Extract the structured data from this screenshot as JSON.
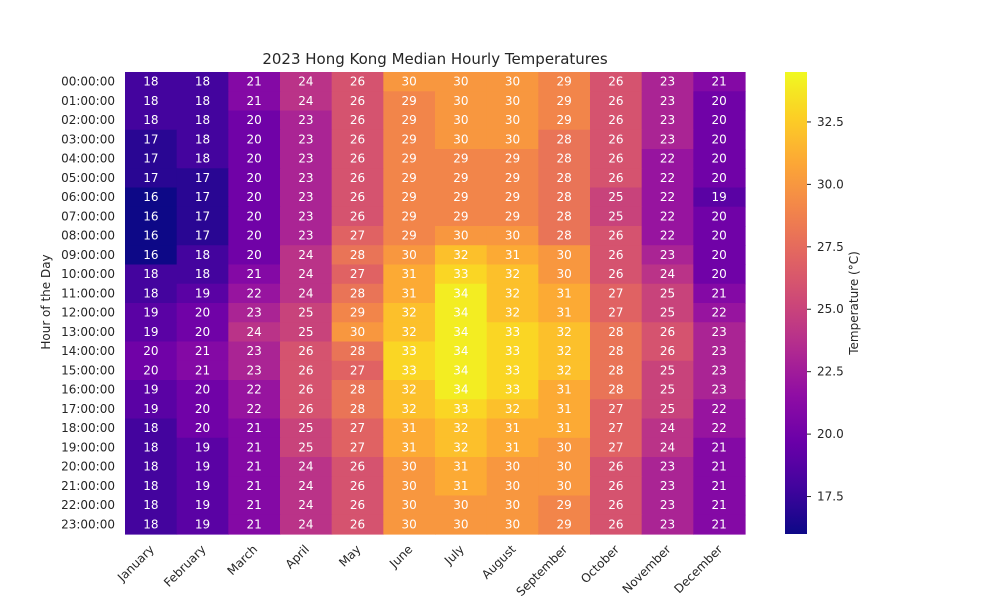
{
  "chart_data": {
    "type": "heatmap",
    "title": "2023 Hong Kong Median Hourly Temperatures",
    "xlabel": "",
    "ylabel": "Hour of the Day",
    "colorbar_label": "Temperature (°C)",
    "colormap": "plasma",
    "color_range": [
      16,
      34.5
    ],
    "colorbar_ticks": [
      "17.5",
      "20.0",
      "22.5",
      "25.0",
      "27.5",
      "30.0",
      "32.5"
    ],
    "columns": [
      "January",
      "February",
      "March",
      "April",
      "May",
      "June",
      "July",
      "August",
      "September",
      "October",
      "November",
      "December"
    ],
    "rows": [
      "00:00:00",
      "01:00:00",
      "02:00:00",
      "03:00:00",
      "04:00:00",
      "05:00:00",
      "06:00:00",
      "07:00:00",
      "08:00:00",
      "09:00:00",
      "10:00:00",
      "11:00:00",
      "12:00:00",
      "13:00:00",
      "14:00:00",
      "15:00:00",
      "16:00:00",
      "17:00:00",
      "18:00:00",
      "19:00:00",
      "20:00:00",
      "21:00:00",
      "22:00:00",
      "23:00:00"
    ],
    "values": [
      [
        18,
        18,
        21,
        24,
        26,
        30,
        30,
        30,
        29,
        26,
        23,
        21
      ],
      [
        18,
        18,
        21,
        24,
        26,
        29,
        30,
        30,
        29,
        26,
        23,
        20
      ],
      [
        18,
        18,
        20,
        23,
        26,
        29,
        30,
        30,
        29,
        26,
        23,
        20
      ],
      [
        17,
        18,
        20,
        23,
        26,
        29,
        30,
        30,
        28,
        26,
        23,
        20
      ],
      [
        17,
        18,
        20,
        23,
        26,
        29,
        29,
        29,
        28,
        26,
        22,
        20
      ],
      [
        17,
        17,
        20,
        23,
        26,
        29,
        29,
        29,
        28,
        26,
        22,
        20
      ],
      [
        16,
        17,
        20,
        23,
        26,
        29,
        29,
        29,
        28,
        25,
        22,
        19
      ],
      [
        16,
        17,
        20,
        23,
        26,
        29,
        29,
        29,
        28,
        25,
        22,
        20
      ],
      [
        16,
        17,
        20,
        23,
        27,
        29,
        30,
        30,
        28,
        26,
        22,
        20
      ],
      [
        16,
        18,
        20,
        24,
        28,
        30,
        32,
        31,
        30,
        26,
        23,
        20
      ],
      [
        18,
        18,
        21,
        24,
        27,
        31,
        33,
        32,
        30,
        26,
        24,
        20
      ],
      [
        18,
        19,
        22,
        24,
        28,
        31,
        34,
        32,
        31,
        27,
        25,
        21
      ],
      [
        19,
        20,
        23,
        25,
        29,
        32,
        34,
        32,
        31,
        27,
        25,
        22
      ],
      [
        19,
        20,
        24,
        25,
        30,
        32,
        34,
        33,
        32,
        28,
        26,
        23
      ],
      [
        20,
        21,
        23,
        26,
        28,
        33,
        34,
        33,
        32,
        28,
        26,
        23
      ],
      [
        20,
        21,
        23,
        26,
        27,
        33,
        34,
        33,
        32,
        28,
        25,
        23
      ],
      [
        19,
        20,
        22,
        26,
        28,
        32,
        34,
        33,
        31,
        28,
        25,
        23
      ],
      [
        19,
        20,
        22,
        26,
        28,
        32,
        33,
        32,
        31,
        27,
        25,
        22
      ],
      [
        18,
        20,
        21,
        25,
        27,
        31,
        32,
        31,
        31,
        27,
        24,
        22
      ],
      [
        18,
        19,
        21,
        25,
        27,
        31,
        32,
        31,
        30,
        27,
        24,
        21
      ],
      [
        18,
        19,
        21,
        24,
        26,
        30,
        31,
        30,
        30,
        26,
        23,
        21
      ],
      [
        18,
        19,
        21,
        24,
        26,
        30,
        31,
        30,
        30,
        26,
        23,
        21
      ],
      [
        18,
        19,
        21,
        24,
        26,
        30,
        30,
        30,
        29,
        26,
        23,
        21
      ],
      [
        18,
        19,
        21,
        24,
        26,
        30,
        30,
        30,
        29,
        26,
        23,
        21
      ]
    ]
  }
}
